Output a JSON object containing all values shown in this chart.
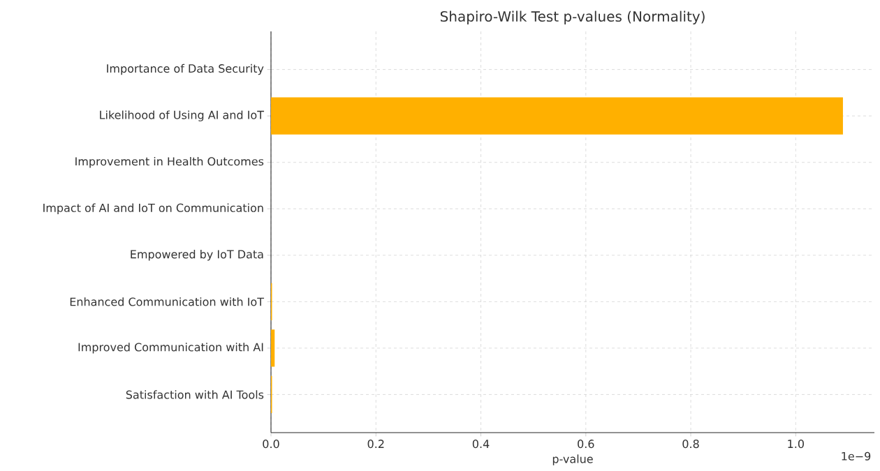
{
  "chart_data": {
    "type": "bar",
    "orientation": "horizontal",
    "title": "Shapiro-Wilk Test p-values (Normality)",
    "xlabel": "p-value",
    "categories": [
      "Importance of Data Security",
      "Likelihood of Using AI and IoT",
      "Improvement in Health Outcomes",
      "Impact of AI and IoT on Communication",
      "Empowered by IoT Data",
      "Enhanced Communication with IoT",
      "Improved Communication with AI",
      "Satisfaction with AI Tools"
    ],
    "values": [
      0,
      1.09,
      0,
      0,
      0,
      0.002,
      0.007,
      0.002
    ],
    "color": "#ffb000",
    "xlim": [
      0,
      1.15
    ],
    "xticks": [
      {
        "value": 0,
        "label": "0.0"
      },
      {
        "value": 0.2,
        "label": "0.2"
      },
      {
        "value": 0.4,
        "label": "0.4"
      },
      {
        "value": 0.6,
        "label": "0.6"
      },
      {
        "value": 0.8,
        "label": "0.8"
      },
      {
        "value": 1.0,
        "label": "1.0"
      }
    ],
    "grid": true,
    "annotations": [
      "1e−9"
    ]
  }
}
